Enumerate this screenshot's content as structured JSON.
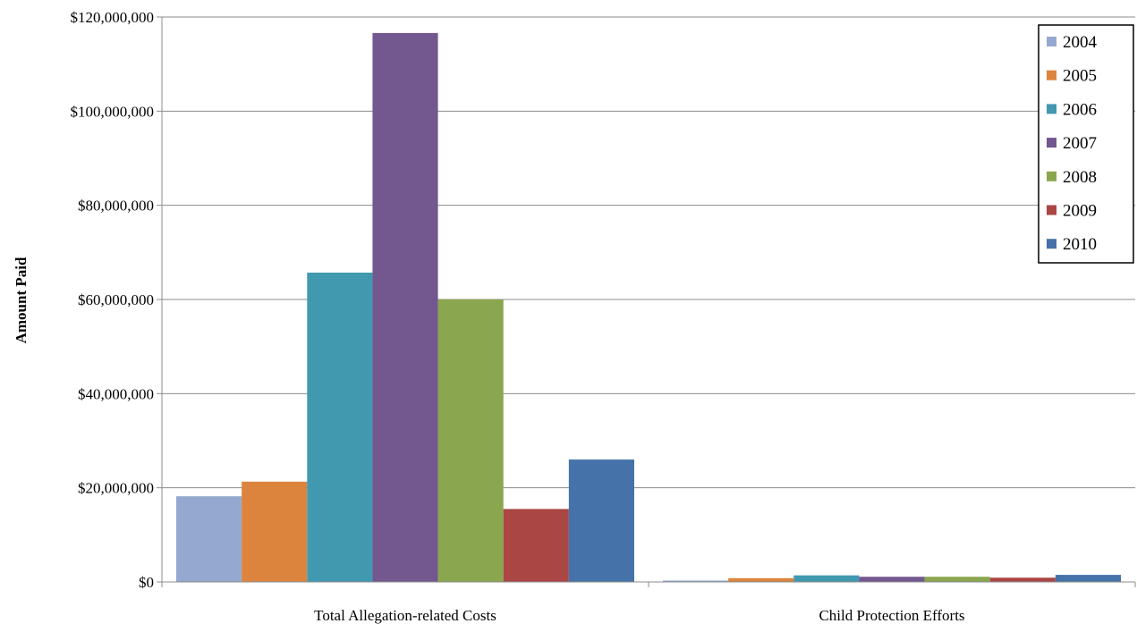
{
  "chart_data": {
    "type": "bar",
    "title": "",
    "xlabel": "",
    "ylabel": "Amount Paid",
    "categories": [
      "Total Allegation-related Costs",
      "Child Protection Efforts"
    ],
    "ylim": [
      0,
      120000000
    ],
    "y_ticks": [
      0,
      20000000,
      40000000,
      60000000,
      80000000,
      100000000,
      120000000
    ],
    "y_tick_labels": [
      "$0",
      "$20,000,000",
      "$40,000,000",
      "$60,000,000",
      "$80,000,000",
      "$100,000,000",
      "$120,000,000"
    ],
    "grid": true,
    "legend_position": "top-right",
    "series": [
      {
        "name": "2004",
        "color": "#95A9D0",
        "values": [
          18200000,
          300000
        ]
      },
      {
        "name": "2005",
        "color": "#DC843E",
        "values": [
          21300000,
          800000
        ]
      },
      {
        "name": "2006",
        "color": "#4199B0",
        "values": [
          65700000,
          1400000
        ]
      },
      {
        "name": "2007",
        "color": "#73578F",
        "values": [
          116600000,
          1100000
        ]
      },
      {
        "name": "2008",
        "color": "#8AA64E",
        "values": [
          60000000,
          1100000
        ]
      },
      {
        "name": "2009",
        "color": "#AA4644",
        "values": [
          15500000,
          900000
        ]
      },
      {
        "name": "2010",
        "color": "#4572A8",
        "values": [
          26000000,
          1500000
        ]
      }
    ]
  }
}
